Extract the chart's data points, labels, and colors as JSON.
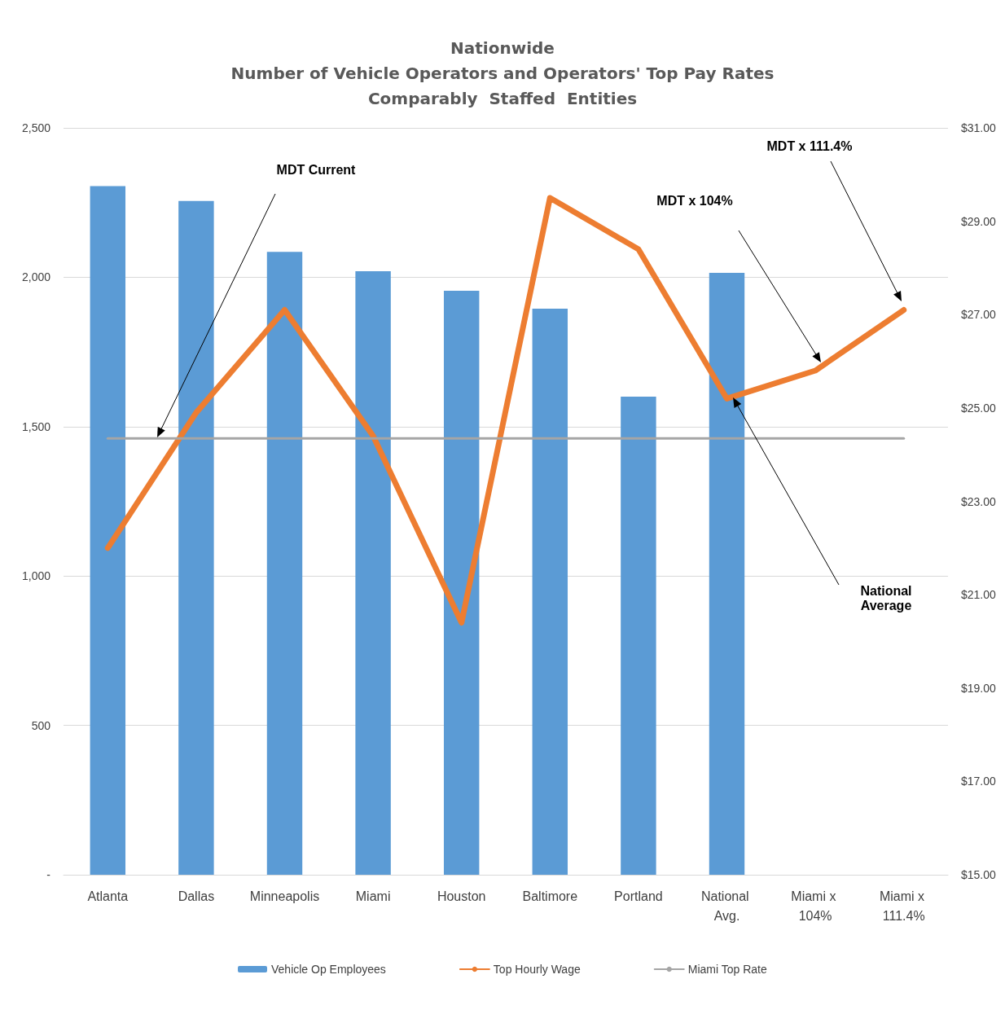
{
  "chart_data": {
    "type": "bar",
    "title": "Nationwide\nNumber of Vehicle Operators and Operators' Top Pay Rates\nComparably  Staffed  Entities",
    "categories": [
      "Atlanta",
      "Dallas",
      "Minneapolis",
      "Miami",
      "Houston",
      "Baltimore",
      "Portland",
      "National Avg.",
      "Miami x 104%",
      "Miami x 111.4%"
    ],
    "series": [
      {
        "name": "Vehicle Op Employees",
        "color": "#5b9bd5",
        "values": [
          2305,
          2255,
          2085,
          2020,
          1955,
          1895,
          1600,
          2015,
          null,
          null
        ]
      },
      {
        "name": "Top Hourly Wage",
        "type": "line",
        "axis": "y2",
        "color": "#ed7d31",
        "values": [
          22.0,
          24.9,
          27.1,
          24.4,
          20.4,
          29.5,
          28.4,
          25.2,
          25.8,
          27.1
        ]
      },
      {
        "name": "Miami Top Rate",
        "type": "line",
        "axis": "y2",
        "color": "#a5a5a5",
        "values": [
          24.35,
          24.35,
          24.35,
          24.35,
          24.35,
          24.35,
          24.35,
          24.35,
          24.35,
          24.35
        ]
      }
    ],
    "ylim": [
      0,
      2500
    ],
    "yticks": [
      {
        "value": 0,
        "label": "-"
      },
      500,
      {
        "value": 1000,
        "label": "1,000"
      },
      {
        "value": 1500,
        "label": "1,500"
      },
      {
        "value": 2000,
        "label": "2,000"
      },
      {
        "value": 2500,
        "label": "2,500"
      }
    ],
    "y2lim": [
      15,
      31
    ],
    "y2ticks": [
      {
        "value": 15,
        "label": "$15.00"
      },
      {
        "value": 17,
        "label": "$17.00"
      },
      {
        "value": 19,
        "label": "$19.00"
      },
      {
        "value": 21,
        "label": "$21.00"
      },
      {
        "value": 23,
        "label": "$23.00"
      },
      {
        "value": 25,
        "label": "$25.00"
      },
      {
        "value": 27,
        "label": "$27.00"
      },
      {
        "value": 29,
        "label": "$29.00"
      },
      {
        "value": 31,
        "label": "$31.00"
      }
    ],
    "annotations": [
      "MDT Current",
      "MDT x 111.4%",
      "MDT x 104%",
      "National Average"
    ],
    "grid": "y",
    "legend": "bottom",
    "marker": "none",
    "line_style": "solid"
  }
}
